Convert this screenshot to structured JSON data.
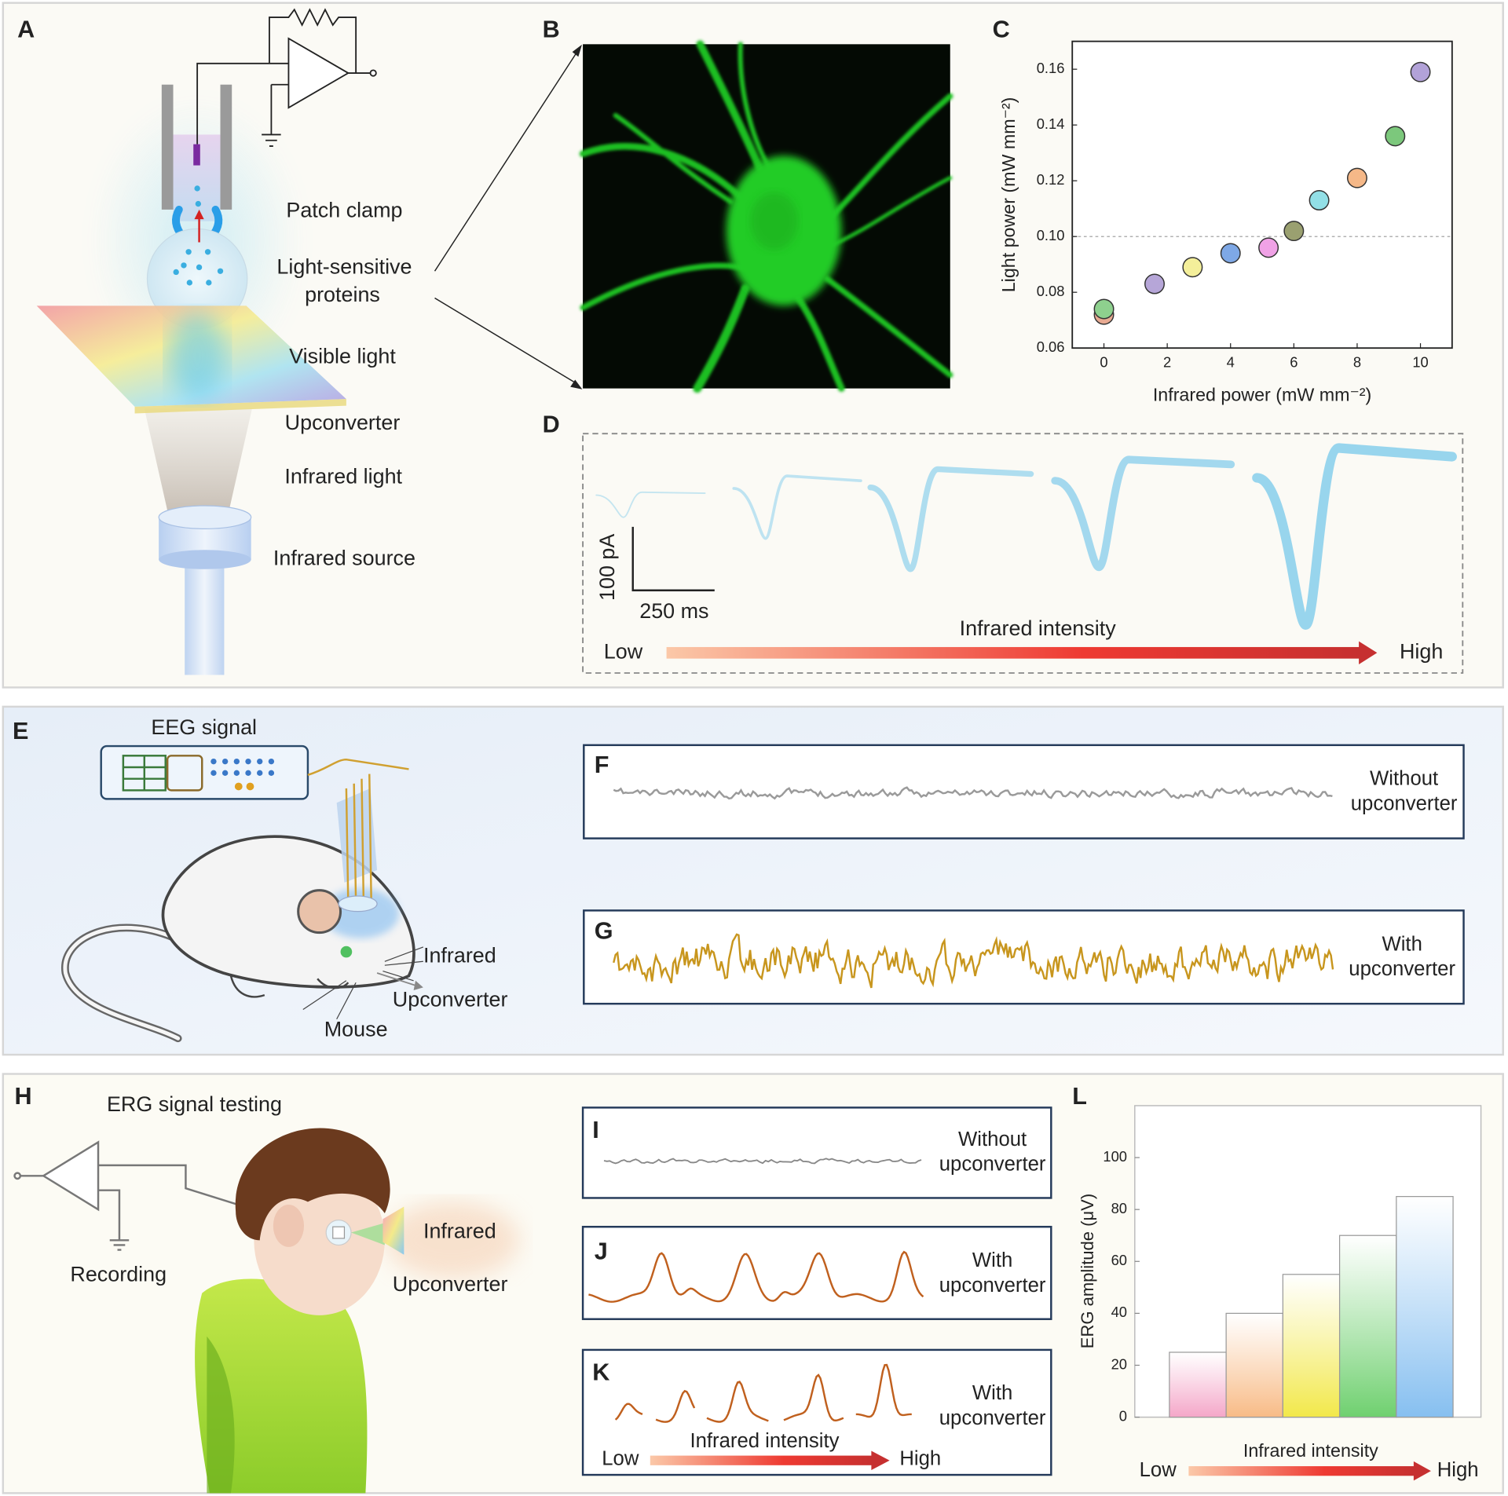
{
  "panel_labels": [
    "A",
    "B",
    "C",
    "D",
    "E",
    "F",
    "G",
    "H",
    "I",
    "J",
    "K",
    "L"
  ],
  "panel_a": {
    "patch_clamp": "Patch clamp",
    "proteins": [
      "Light-sensitive",
      "proteins"
    ],
    "visible_light": "Visible light",
    "upconverter": "Upconverter",
    "infrared_light": "Infrared light",
    "infrared_source": "Infrared source"
  },
  "panel_d": {
    "scale_y": "100 pA",
    "scale_x": "250 ms",
    "low": "Low",
    "axis": "Infrared intensity",
    "high": "High"
  },
  "panel_e": {
    "title": "EEG signal",
    "infrared": "Infrared",
    "upconverter": "Upconverter",
    "mouse": "Mouse"
  },
  "panel_f": {
    "legend": [
      "Without",
      "upconverter"
    ]
  },
  "panel_g": {
    "legend": [
      "With",
      "upconverter"
    ]
  },
  "panel_h": {
    "title": "ERG signal testing",
    "recording": "Recording",
    "infrared": "Infrared",
    "upconverter": "Upconverter"
  },
  "panel_i": {
    "legend": [
      "Without",
      "upconverter"
    ]
  },
  "panel_j": {
    "legend": [
      "With",
      "upconverter"
    ]
  },
  "panel_k": {
    "legend": [
      "With",
      "upconverter"
    ],
    "low": "Low",
    "axis": "Infrared intensity",
    "high": "High"
  },
  "chart_data": [
    {
      "type": "scatter",
      "x_label": "Infrared power (mW mm⁻²)",
      "y_label": "Light power (mW mm⁻²)",
      "x": [
        0,
        0,
        1.6,
        2.8,
        4,
        5.2,
        6,
        6.8,
        8,
        9.2,
        10
      ],
      "values": [
        0.072,
        0.074,
        0.083,
        0.089,
        0.094,
        0.096,
        0.102,
        0.113,
        0.121,
        0.136,
        0.159
      ],
      "colors": [
        "#e8aa92",
        "#8ed08e",
        "#b6a6d8",
        "#f4ef9a",
        "#7ea8e6",
        "#f0a2e6",
        "#9aa070",
        "#92dfe6",
        "#f5b888",
        "#7cc87c",
        "#b2a2d8"
      ],
      "xlim": [
        -1,
        11
      ],
      "ylim": [
        0.06,
        0.17
      ],
      "xticks": [
        0,
        2,
        4,
        6,
        8,
        10
      ],
      "yticks": [
        0.06,
        0.08,
        {
          "value": 0.1,
          "label": "0.10"
        },
        0.12,
        0.14,
        0.16
      ],
      "reference_line": 0.1
    },
    {
      "type": "bar",
      "y_label": "ERG amplitude (μV)",
      "x_label": "Infrared intensity",
      "x_low": "Low",
      "x_high": "High",
      "categories": [
        null,
        null,
        null,
        null,
        null
      ],
      "values": [
        25,
        40,
        55,
        70,
        85
      ],
      "colors": [
        "#f4a6c8",
        "#f8bb86",
        "#f2e84a",
        "#6fd06f",
        "#86bff0"
      ],
      "ylim": [
        0,
        120
      ],
      "yticks": [
        0,
        20,
        40,
        60,
        80,
        100
      ]
    }
  ]
}
